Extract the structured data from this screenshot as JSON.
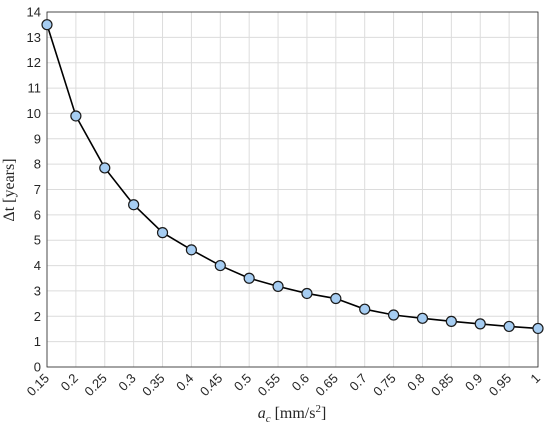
{
  "chart_data": {
    "type": "line",
    "xlabel": [
      "a",
      "c",
      " [mm/s",
      "2",
      "]"
    ],
    "ylabel": "Δt [years]",
    "x": [
      0.15,
      0.2,
      0.25,
      0.3,
      0.35,
      0.4,
      0.45,
      0.5,
      0.55,
      0.6,
      0.65,
      0.7,
      0.75,
      0.8,
      0.85,
      0.9,
      0.95,
      1
    ],
    "series": [
      {
        "color": "#000000",
        "marker_color": "#a6cdf2",
        "values": [
          13.5,
          9.9,
          7.85,
          6.4,
          5.3,
          4.62,
          4.0,
          3.5,
          3.18,
          2.9,
          2.7,
          2.28,
          2.05,
          1.92,
          1.8,
          1.7,
          1.6,
          1.52
        ]
      }
    ],
    "xlim": [
      0.15,
      1
    ],
    "xticks": [
      0.15,
      0.2,
      0.25,
      0.3,
      0.35,
      0.4,
      0.45,
      0.5,
      0.55,
      0.6,
      0.65,
      0.7,
      0.75,
      0.8,
      0.85,
      0.9,
      0.95,
      1
    ],
    "ylim": [
      0,
      14
    ],
    "yticks": [
      0,
      1,
      2,
      3,
      4,
      5,
      6,
      7,
      8,
      9,
      10,
      11,
      12,
      13,
      14
    ],
    "grid": true
  }
}
